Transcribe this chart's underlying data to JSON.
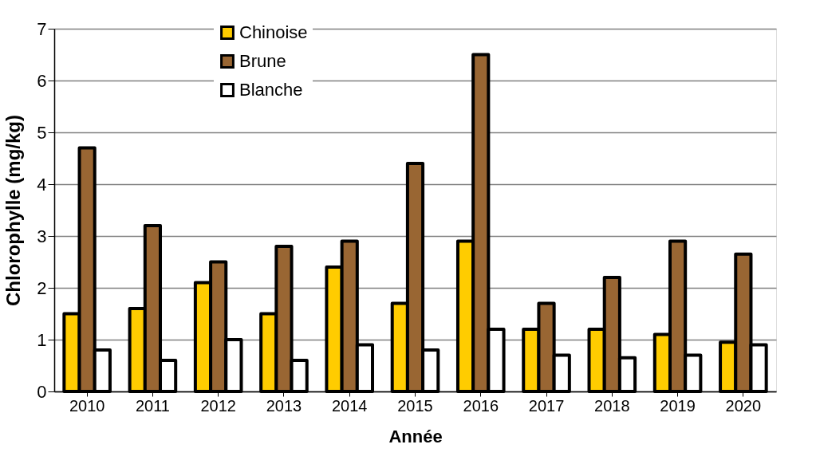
{
  "chart_data": {
    "type": "bar",
    "xlabel": "Année",
    "ylabel": "Chlorophylle (mg/kg)",
    "categories": [
      "2010",
      "2011",
      "2012",
      "2013",
      "2014",
      "2015",
      "2016",
      "2017",
      "2018",
      "2019",
      "2020"
    ],
    "series": [
      {
        "name": "Chinoise",
        "color": "#ffcc00",
        "values": [
          1.5,
          1.6,
          2.1,
          1.5,
          2.4,
          1.7,
          2.9,
          1.2,
          1.2,
          1.1,
          0.95
        ]
      },
      {
        "name": "Brune",
        "color": "#996633",
        "values": [
          4.7,
          3.2,
          2.5,
          2.8,
          2.9,
          4.4,
          6.5,
          1.7,
          2.2,
          2.9,
          2.65
        ]
      },
      {
        "name": "Blanche",
        "color": "#ffffff",
        "values": [
          0.8,
          0.6,
          1.0,
          0.6,
          0.9,
          0.8,
          1.2,
          0.7,
          0.65,
          0.7,
          0.9
        ]
      }
    ],
    "ylim": [
      0,
      7
    ],
    "yticks": [
      0,
      1,
      2,
      3,
      4,
      5,
      6,
      7
    ],
    "grid": "y",
    "legend": "top"
  }
}
